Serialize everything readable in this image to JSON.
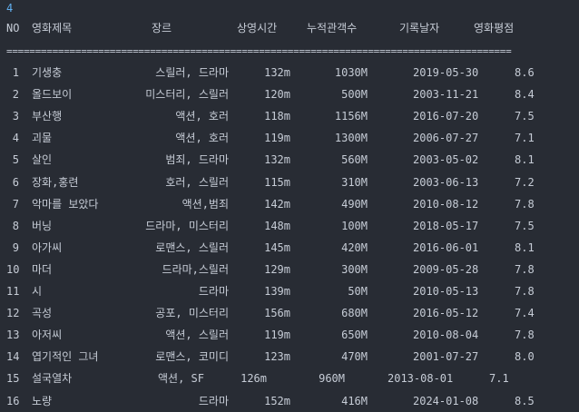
{
  "prompt": "4",
  "header": {
    "no": "NO",
    "title": "영화제목",
    "genre": "장르",
    "runtime": "상영시간",
    "audience": "누적관객수",
    "date": "기록날자",
    "rating": "영화평점"
  },
  "separator": "=========================================================================================================",
  "rows": [
    {
      "no": "1",
      "title": "기생충",
      "genre": "스릴러, 드라마",
      "runtime": "132m",
      "audience": "1030M",
      "date": "2019-05-30",
      "rating": "8.6"
    },
    {
      "no": "2",
      "title": "올드보이",
      "genre": "미스터리, 스릴러",
      "runtime": "120m",
      "audience": "500M",
      "date": "2003-11-21",
      "rating": "8.4"
    },
    {
      "no": "3",
      "title": "부산행",
      "genre": "액션, 호러",
      "runtime": "118m",
      "audience": "1156M",
      "date": "2016-07-20",
      "rating": "7.5"
    },
    {
      "no": "4",
      "title": "괴물",
      "genre": "액션, 호러",
      "runtime": "119m",
      "audience": "1300M",
      "date": "2006-07-27",
      "rating": "7.1"
    },
    {
      "no": "5",
      "title": "살인",
      "genre": "범죄, 드라마",
      "runtime": "132m",
      "audience": "560M",
      "date": "2003-05-02",
      "rating": "8.1"
    },
    {
      "no": "6",
      "title": "장화,홍련",
      "genre": "호러, 스릴러",
      "runtime": "115m",
      "audience": "310M",
      "date": "2003-06-13",
      "rating": "7.2"
    },
    {
      "no": "7",
      "title": "악마를 보았다",
      "genre": "액션,범죄",
      "runtime": "142m",
      "audience": "490M",
      "date": "2010-08-12",
      "rating": "7.8"
    },
    {
      "no": "8",
      "title": "버닝",
      "genre": "드라마, 미스터리",
      "runtime": "148m",
      "audience": "100M",
      "date": "2018-05-17",
      "rating": "7.5"
    },
    {
      "no": "9",
      "title": "아가씨",
      "genre": "로맨스, 스릴러",
      "runtime": "145m",
      "audience": "420M",
      "date": "2016-06-01",
      "rating": "8.1"
    },
    {
      "no": "10",
      "title": "마더",
      "genre": "드라마,스릴러",
      "runtime": "129m",
      "audience": "300M",
      "date": "2009-05-28",
      "rating": "7.8"
    },
    {
      "no": "11",
      "title": "시",
      "genre": "드라마",
      "runtime": "139m",
      "audience": "50M",
      "date": "2010-05-13",
      "rating": "7.8"
    },
    {
      "no": "12",
      "title": "곡성",
      "genre": "공포, 미스터리",
      "runtime": "156m",
      "audience": "680M",
      "date": "2016-05-12",
      "rating": "7.4"
    },
    {
      "no": "13",
      "title": "아저씨",
      "genre": "액션, 스릴러",
      "runtime": "119m",
      "audience": "650M",
      "date": "2010-08-04",
      "rating": "7.8"
    },
    {
      "no": "14",
      "title": "엽기적인 그녀",
      "genre": "로맨스, 코미디",
      "runtime": "123m",
      "audience": "470M",
      "date": "2001-07-27",
      "rating": "8.0"
    },
    {
      "no": "15",
      "title": "설국열차",
      "genre": "액션, SF",
      "runtime": "126m",
      "audience": "960M",
      "date": "2013-08-01",
      "rating": "7.1"
    },
    {
      "no": "16",
      "title": "노량",
      "genre": "드라마",
      "runtime": "152m",
      "audience": "416M",
      "date": "2024-01-08",
      "rating": "8.5"
    }
  ]
}
